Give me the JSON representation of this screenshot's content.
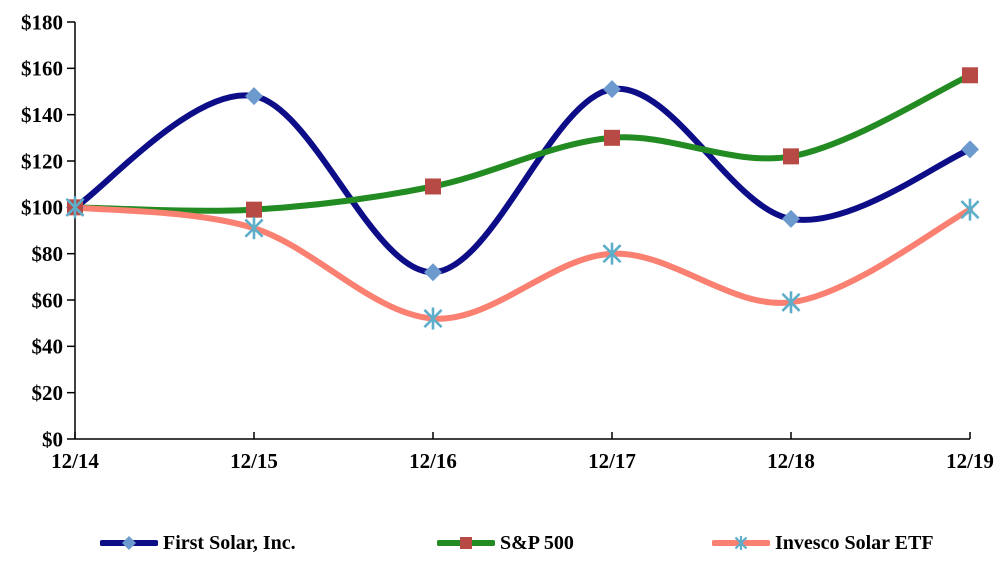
{
  "chart_data": {
    "type": "line",
    "smooth": true,
    "title": "",
    "xlabel": "",
    "ylabel": "",
    "categories": [
      "12/14",
      "12/15",
      "12/16",
      "12/17",
      "12/18",
      "12/19"
    ],
    "series": [
      {
        "name": "First Solar, Inc.",
        "line_color": "#0D0D88",
        "marker": "diamond",
        "marker_color": "#6C9ACE",
        "values": [
          100,
          148,
          72,
          151,
          95,
          125
        ]
      },
      {
        "name": "S&P 500",
        "line_color": "#228B22",
        "marker": "square",
        "marker_color": "#B84A46",
        "values": [
          100,
          99,
          109,
          130,
          122,
          157
        ]
      },
      {
        "name": "Invesco Solar ETF",
        "line_color": "#FA8072",
        "marker": "asterisk",
        "marker_color": "#5CAEC9",
        "values": [
          100,
          91,
          52,
          80,
          59,
          99
        ]
      }
    ],
    "ylim": [
      0,
      180
    ],
    "ytick_step": 20,
    "ytick_labels": [
      "$0",
      "$20",
      "$40",
      "$60",
      "$80",
      "$100",
      "$120",
      "$140",
      "$160",
      "$180"
    ],
    "grid": false,
    "legend_position": "bottom",
    "axis_color": "#000000",
    "background": "#FFFFFF"
  }
}
